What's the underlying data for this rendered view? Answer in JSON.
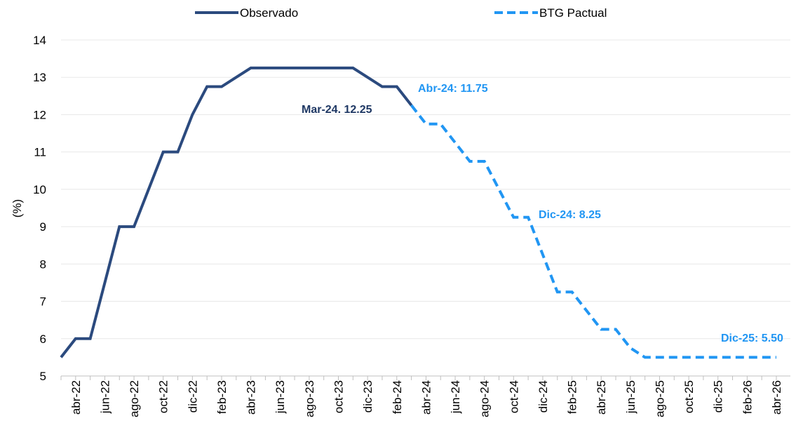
{
  "chart_data": {
    "type": "line",
    "ylabel": "(%)",
    "categories": [
      null,
      "abr-22",
      null,
      "jun-22",
      null,
      "ago-22",
      null,
      "oct-22",
      null,
      "dic-22",
      null,
      "feb-23",
      null,
      "abr-23",
      null,
      "jun-23",
      null,
      "ago-23",
      null,
      "oct-23",
      null,
      "dic-23",
      null,
      "feb-24",
      null,
      "abr-24",
      null,
      "jun-24",
      null,
      "ago-24",
      null,
      "oct-24",
      null,
      "dic-24",
      null,
      "feb-25",
      null,
      "abr-25",
      null,
      "jun-25",
      null,
      "ago-25",
      null,
      "oct-25",
      null,
      "dic-25",
      null,
      "feb-26",
      null,
      "abr-26"
    ],
    "series": [
      {
        "name": "Observado",
        "color": "#2b4a7e",
        "dash": false,
        "values": [
          5.5,
          6,
          6,
          7.5,
          9,
          9,
          10,
          11,
          11,
          12,
          12.75,
          12.75,
          13,
          13.25,
          13.25,
          13.25,
          13.25,
          13.25,
          13.25,
          13.25,
          13.25,
          13,
          12.75,
          12.75,
          12.25,
          null,
          null,
          null,
          null,
          null,
          null,
          null,
          null,
          null,
          null,
          null,
          null,
          null,
          null,
          null,
          null,
          null,
          null,
          null,
          null,
          null,
          null,
          null,
          null,
          null
        ]
      },
      {
        "name": "BTG Pactual",
        "color": "#2196f3",
        "dash": true,
        "values": [
          null,
          null,
          null,
          null,
          null,
          null,
          null,
          null,
          null,
          null,
          null,
          null,
          null,
          null,
          null,
          null,
          null,
          null,
          null,
          null,
          null,
          null,
          null,
          null,
          12.25,
          11.75,
          11.75,
          11.25,
          10.75,
          10.75,
          10,
          9.25,
          9.25,
          8.25,
          7.25,
          7.25,
          6.75,
          6.25,
          6.25,
          5.75,
          5.5,
          5.5,
          5.5,
          5.5,
          5.5,
          5.5,
          5.5,
          5.5,
          5.5,
          5.5
        ]
      }
    ],
    "annotations": [
      "Mar-24. 12.25",
      "Abr-24: 11.75",
      "Dic-24: 8.25",
      "Dic-25: 5.50"
    ],
    "ylim": [
      5,
      14
    ],
    "yticks": [
      5,
      6,
      7,
      8,
      9,
      10,
      11,
      12,
      13,
      14
    ],
    "grid": true
  }
}
